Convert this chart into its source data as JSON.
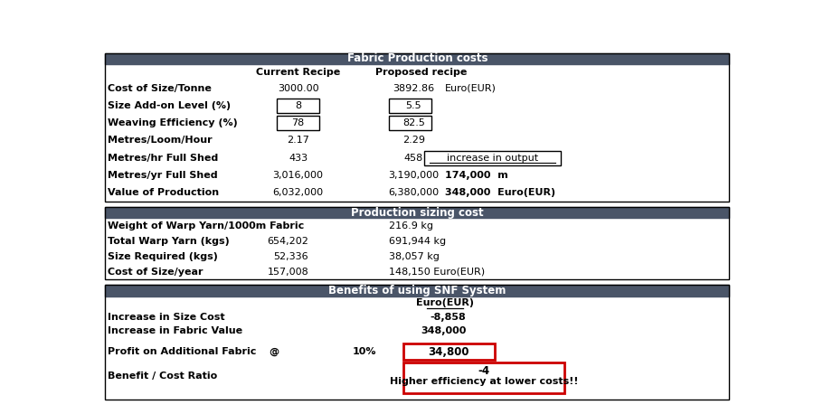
{
  "header_color": "#4a5568",
  "header_text_color": "#ffffff",
  "bg_color": "#ffffff",
  "border_color": "#000000",
  "box_border_color": "#cc0000",
  "section1_title": "Fabric Production costs",
  "section1_rows": [
    {
      "label": "Cost of Size/Tonne",
      "col1": "3000.00",
      "col2": "3892.86",
      "col3": "Euro(EUR)",
      "boxed1": false,
      "boxed2": false,
      "col3_boxed": false,
      "col3_bold": false,
      "col3_underline": false
    },
    {
      "label": "Size Add-on Level (%)",
      "col1": "8",
      "col2": "5.5",
      "col3": "",
      "boxed1": true,
      "boxed2": true,
      "col3_boxed": false,
      "col3_bold": false,
      "col3_underline": false
    },
    {
      "label": "Weaving Efficiency (%)",
      "col1": "78",
      "col2": "82.5",
      "col3": "",
      "boxed1": true,
      "boxed2": true,
      "col3_boxed": false,
      "col3_bold": false,
      "col3_underline": false
    },
    {
      "label": "Metres/Loom/Hour",
      "col1": "2.17",
      "col2": "2.29",
      "col3": "",
      "boxed1": false,
      "boxed2": false,
      "col3_boxed": false,
      "col3_bold": false,
      "col3_underline": false
    },
    {
      "label": "Metres/hr Full Shed",
      "col1": "433",
      "col2": "458",
      "col3": "increase in output",
      "boxed1": false,
      "boxed2": false,
      "col3_boxed": true,
      "col3_bold": false,
      "col3_underline": true
    },
    {
      "label": "Metres/yr Full Shed",
      "col1": "3,016,000",
      "col2": "3,190,000",
      "col3": "174,000  m",
      "boxed1": false,
      "boxed2": false,
      "col3_boxed": false,
      "col3_bold": true,
      "col3_underline": false
    },
    {
      "label": "Value of Production",
      "col1": "6,032,000",
      "col2": "6,380,000",
      "col3": "348,000  Euro(EUR)",
      "boxed1": false,
      "boxed2": false,
      "col3_boxed": false,
      "col3_bold": true,
      "col3_underline": false
    }
  ],
  "section2_title": "Production sizing cost",
  "section2_rows": [
    {
      "label": "Weight of Warp Yarn/1000m Fabric",
      "col1": "",
      "col2": "216.9 kg"
    },
    {
      "label": "Total Warp Yarn (kgs)",
      "col1": "654,202",
      "col2": "691,944 kg"
    },
    {
      "label": "Size Required (kgs)",
      "col1": "52,336",
      "col2": "38,057 kg"
    },
    {
      "label": "Cost of Size/year",
      "col1": "157,008",
      "col2": "148,150 Euro(EUR)"
    }
  ],
  "section3_title": "Benefits of using SNF System",
  "section3_col_header": "Euro(EUR)",
  "section3_rows": [
    {
      "label": "Increase in Size Cost",
      "value": "-8,858"
    },
    {
      "label": "Increase in Fabric Value",
      "value": "348,000"
    }
  ],
  "section3_profit_label": "Profit on Additional Fabric",
  "section3_profit_at": "@",
  "section3_profit_pct": "10%",
  "section3_profit_value": "34,800",
  "section3_bcr_label": "Benefit / Cost Ratio",
  "section3_bcr_value": "-4",
  "section3_bcr_subtext": "Higher efficiency at lower costs!!"
}
